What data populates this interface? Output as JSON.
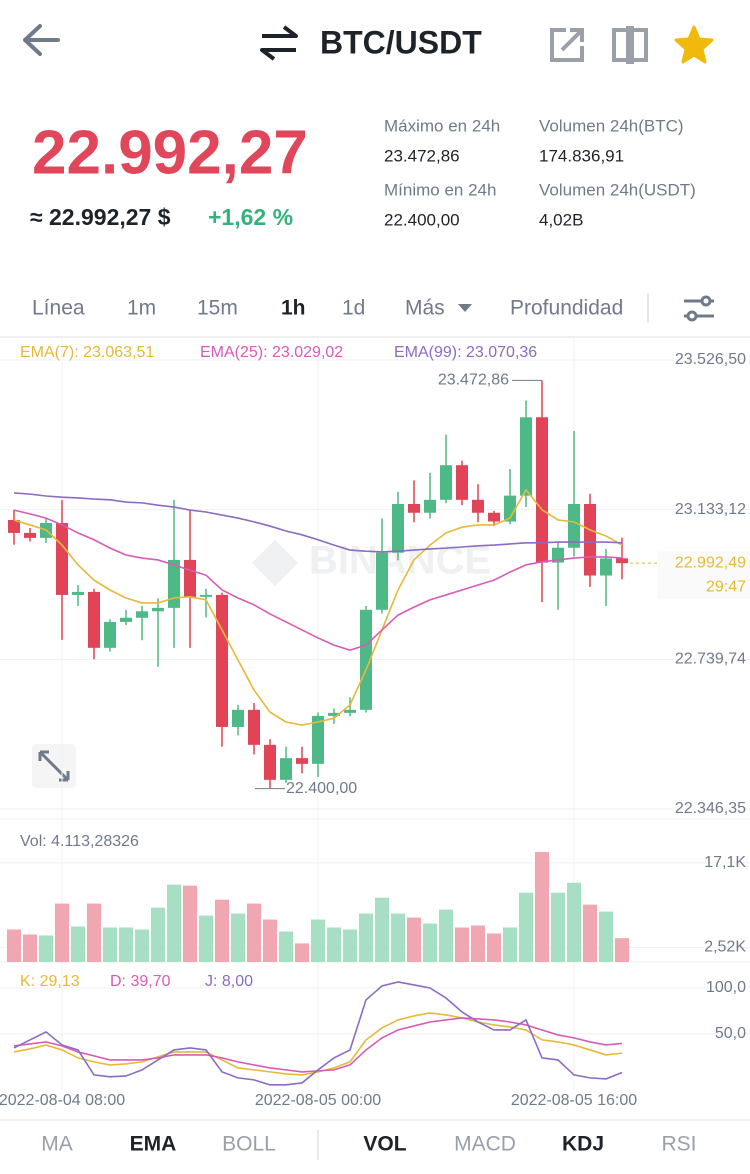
{
  "header": {
    "title": "BTC/USDT"
  },
  "ticker": {
    "price": "22.992,27",
    "fiat": "≈ 22.992,27 $",
    "change": "+1,62 %"
  },
  "stats": [
    {
      "label": "Máximo en 24h",
      "value": "23.472,86"
    },
    {
      "label": "Volumen 24h(BTC)",
      "value": "174.836,91"
    },
    {
      "label": "Mínimo en 24h",
      "value": "22.400,00"
    },
    {
      "label": "Volumen 24h(USDT)",
      "value": "4,02B"
    }
  ],
  "interval_tabs": [
    "Línea",
    "1m",
    "15m",
    "1h",
    "1d",
    "Más",
    "Profundidad"
  ],
  "active_interval": 3,
  "indicator_tabs": [
    "MA",
    "EMA",
    "BOLL",
    "VOL",
    "MACD",
    "KDJ",
    "RSI"
  ],
  "active_indicators": [
    1,
    3,
    5
  ],
  "watermark": "BINANCE",
  "chart_data": [
    {
      "type": "candlestick",
      "categories": [
        null,
        null,
        null,
        "2022-08-04 08:00",
        null,
        null,
        null,
        null,
        null,
        null,
        null,
        null,
        null,
        null,
        null,
        null,
        null,
        null,
        null,
        "2022-08-05 00:00",
        null,
        null,
        null,
        null,
        null,
        null,
        null,
        null,
        null,
        null,
        null,
        null,
        null,
        null,
        null,
        "2022-08-05 16:00",
        null,
        null,
        null
      ],
      "open": [
        23106,
        23072,
        23059,
        23098,
        22909,
        22917,
        22770,
        22838,
        22849,
        22866,
        22875,
        23001,
        22904,
        22909,
        22562,
        22607,
        22515,
        22423,
        22480,
        22465,
        22591,
        22599,
        22607,
        22870,
        23020,
        23148,
        23125,
        23159,
        23250,
        23159,
        23125,
        23102,
        23170,
        23376,
        22994,
        23033,
        23148,
        22960,
        23005
      ],
      "high": [
        23133,
        23085,
        23112,
        23159,
        22935,
        22925,
        22845,
        22870,
        22880,
        22900,
        23159,
        23133,
        22925,
        22915,
        22620,
        22625,
        22530,
        22510,
        22510,
        22600,
        22610,
        22640,
        22880,
        23110,
        23180,
        23210,
        23230,
        23330,
        23262,
        23200,
        23130,
        23240,
        23420,
        23472.86,
        23050,
        23340,
        23175,
        23030,
        23060
      ],
      "low": [
        23041,
        23050,
        23046,
        22791,
        22880,
        22740,
        22760,
        22830,
        22790,
        22720,
        22770,
        22770,
        22850,
        22510,
        22540,
        22490,
        22400,
        22415,
        22440,
        22430,
        22570,
        22590,
        22600,
        22860,
        23000,
        23100,
        23110,
        23150,
        23145,
        23100,
        23090,
        23095,
        23140,
        22890,
        22870,
        23010,
        22930,
        22880,
        22950
      ],
      "close": [
        23072,
        23059,
        23098,
        22909,
        22917,
        22770,
        22838,
        22849,
        22866,
        22875,
        23001,
        22904,
        22909,
        22562,
        22607,
        22515,
        22423,
        22480,
        22465,
        22591,
        22599,
        22607,
        22870,
        23020,
        23148,
        23125,
        23159,
        23250,
        23159,
        23125,
        23102,
        23170,
        23376,
        22994,
        23033,
        23148,
        22960,
        23005,
        22992.49
      ],
      "up_color": "#4eb887",
      "down_color": "#e04456",
      "series": [
        {
          "name": "EMA(7): 23.063,51",
          "color": "#e6b93a",
          "values": [
            23106,
            23093,
            23080,
            23040,
            22988,
            22948,
            22922,
            22901,
            22888,
            22888,
            22901,
            22904,
            22896,
            22817,
            22738,
            22659,
            22601,
            22575,
            22567,
            22575,
            22585,
            22620,
            22712,
            22817,
            22922,
            23001,
            23040,
            23072,
            23087,
            23093,
            23093,
            23111,
            23185,
            23133,
            23106,
            23101,
            23080,
            23064,
            23040
          ]
        },
        {
          "name": "EMA(25): 23.029,02",
          "color": "#d65cb7",
          "values": [
            23132,
            23122,
            23111,
            23093,
            23072,
            23054,
            23032,
            23014,
            23006,
            23001,
            22988,
            22974,
            22961,
            22922,
            22901,
            22883,
            22859,
            22838,
            22817,
            22796,
            22777,
            22764,
            22777,
            22817,
            22856,
            22877,
            22896,
            22909,
            22922,
            22935,
            22948,
            22969,
            22988,
            22996,
            23001,
            23006,
            23009,
            23009,
            23006
          ]
        },
        {
          "name": "EMA(99): 23.070,36",
          "color": "#8c6bc1",
          "values": [
            23177,
            23174,
            23169,
            23166,
            23164,
            23161,
            23159,
            23153,
            23151,
            23145,
            23140,
            23132,
            23127,
            23119,
            23111,
            23101,
            23090,
            23077,
            23067,
            23054,
            23040,
            23027,
            23024,
            23022,
            23024,
            23027,
            23030,
            23032,
            23035,
            23038,
            23040,
            23043,
            23046,
            23046,
            23048,
            23048,
            23048,
            23048,
            23046
          ]
        }
      ],
      "ylim": [
        22346.35,
        23526.5
      ],
      "yticks": [
        {
          "value": 23526.5,
          "label": "23.526,50"
        },
        {
          "value": 23133.12,
          "label": "23.133,12"
        },
        {
          "value": 22739.74,
          "label": "22.739,74"
        },
        {
          "value": 22346.35,
          "label": "22.346,35"
        }
      ],
      "grid": true,
      "annotations": [
        {
          "value": 23472.86,
          "label": "23.472,86"
        },
        {
          "value": 22400,
          "label": "22.400,00"
        }
      ],
      "last_price": {
        "value": 22992.49,
        "label": "22.992,49",
        "countdown": "29:47",
        "color": "#e6b93a"
      }
    },
    {
      "type": "bar",
      "title": "Vol: 4.113,28326",
      "values": [
        5608,
        4750,
        4579,
        10081,
        6123,
        10081,
        5951,
        5951,
        5608,
        9381,
        13343,
        13172,
        8009,
        10753,
        8352,
        10081,
        7323,
        5265,
        3207,
        7323,
        5951,
        5608,
        8352,
        11096,
        8352,
        7666,
        6637,
        9038,
        5951,
        6294,
        4922,
        5951,
        11954,
        18986,
        11954,
        13669,
        9895,
        8695,
        4113.28326
      ],
      "up_color": "#a6dfc3",
      "down_color": "#f1a7b1",
      "ylim": [
        0,
        24500
      ],
      "yticks": [
        {
          "value": 17100,
          "label": "17,1K"
        },
        {
          "value": 2520,
          "label": "2,52K"
        }
      ],
      "grid": true
    },
    {
      "type": "line",
      "series": [
        {
          "name": "K: 29,13",
          "color": "#e6b93a",
          "values": [
            30.4,
            33.7,
            38.0,
            32.6,
            23.9,
            19.6,
            16.3,
            17.4,
            19.6,
            25.0,
            30.4,
            30.4,
            30.4,
            21.7,
            13.0,
            10.9,
            8.7,
            6.5,
            5.4,
            8.7,
            13.0,
            19.6,
            43.5,
            56.5,
            65.2,
            69.6,
            72.8,
            70.7,
            67.4,
            63.0,
            59.8,
            57.6,
            54.3,
            43.5,
            41.3,
            38.0,
            32.6,
            27.2,
            29.13
          ]
        },
        {
          "name": "D: 39,70",
          "color": "#d65cb7",
          "values": [
            37.0,
            39.1,
            41.3,
            37.0,
            30.4,
            26.1,
            21.7,
            21.7,
            21.7,
            23.9,
            27.2,
            27.2,
            27.2,
            23.9,
            19.6,
            16.3,
            13.0,
            10.9,
            8.7,
            9.8,
            10.9,
            16.3,
            32.6,
            45.7,
            54.3,
            58.7,
            63.0,
            65.2,
            67.4,
            66.3,
            65.2,
            63.0,
            59.8,
            54.3,
            48.9,
            45.7,
            41.3,
            38.0,
            39.7
          ]
        },
        {
          "name": "J: 8,00",
          "color": "#8c6bc1",
          "values": [
            34.8,
            43.5,
            52.2,
            38.0,
            32.6,
            5.4,
            3.3,
            4.3,
            10.9,
            21.7,
            32.6,
            34.8,
            32.6,
            8.7,
            2.2,
            0,
            -5.4,
            -5.4,
            -3.3,
            10.9,
            23.9,
            32.6,
            87,
            102.2,
            106.5,
            103.3,
            100,
            89.1,
            73.9,
            63,
            54.3,
            54.3,
            65.2,
            23.9,
            21.7,
            5.4,
            2.2,
            1.1,
            8
          ]
        }
      ],
      "ylim": [
        -11,
        125
      ],
      "yticks": [
        {
          "value": 100,
          "label": "100,0"
        },
        {
          "value": 50,
          "label": "50,0"
        }
      ],
      "grid": true
    }
  ]
}
